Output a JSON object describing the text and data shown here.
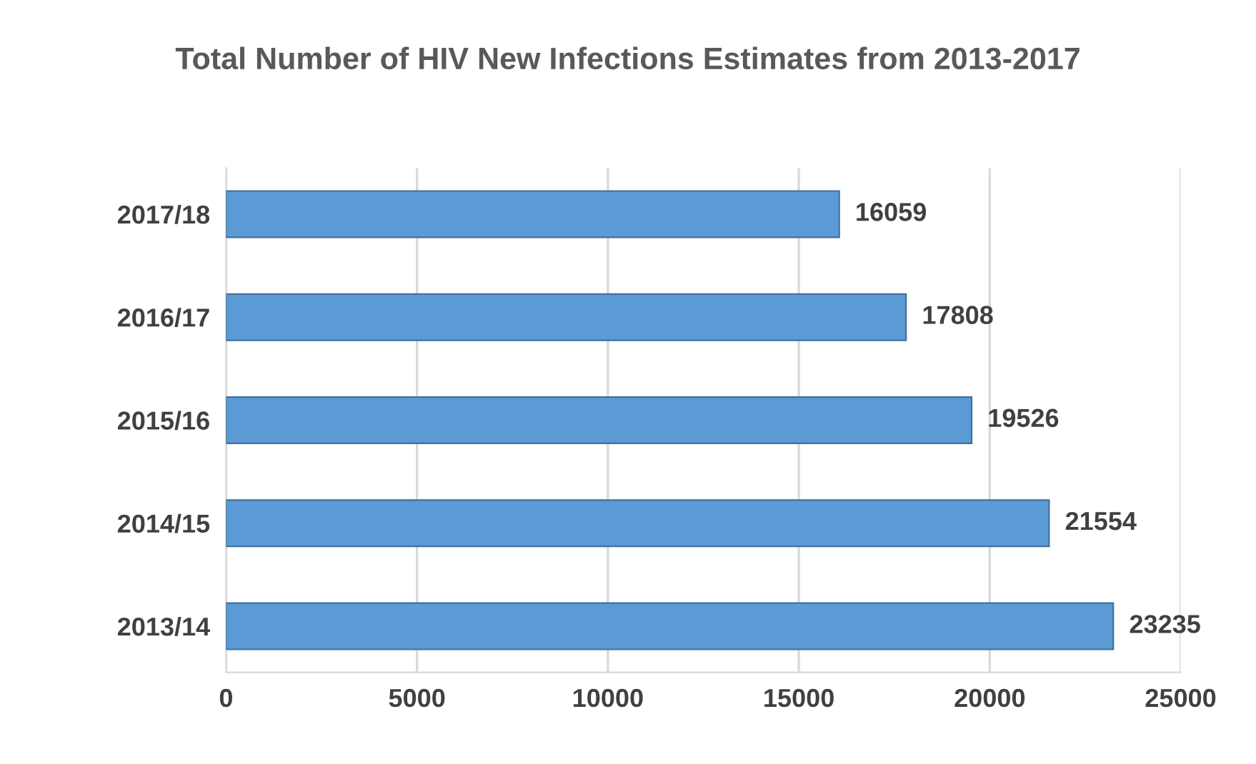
{
  "chart_data": {
    "type": "bar",
    "orientation": "horizontal",
    "title": "Total Number of HIV New Infections Estimates from 2013-2017",
    "categories": [
      "2017/18",
      "2016/17",
      "2015/16",
      "2014/15",
      "2013/14"
    ],
    "values": [
      16059,
      17808,
      19526,
      21554,
      23235
    ],
    "color": "#5b9bd5",
    "xlim": [
      0,
      25000
    ],
    "xticks": [
      0,
      5000,
      10000,
      15000,
      20000,
      25000
    ],
    "grid": "x",
    "data_labels": true
  }
}
